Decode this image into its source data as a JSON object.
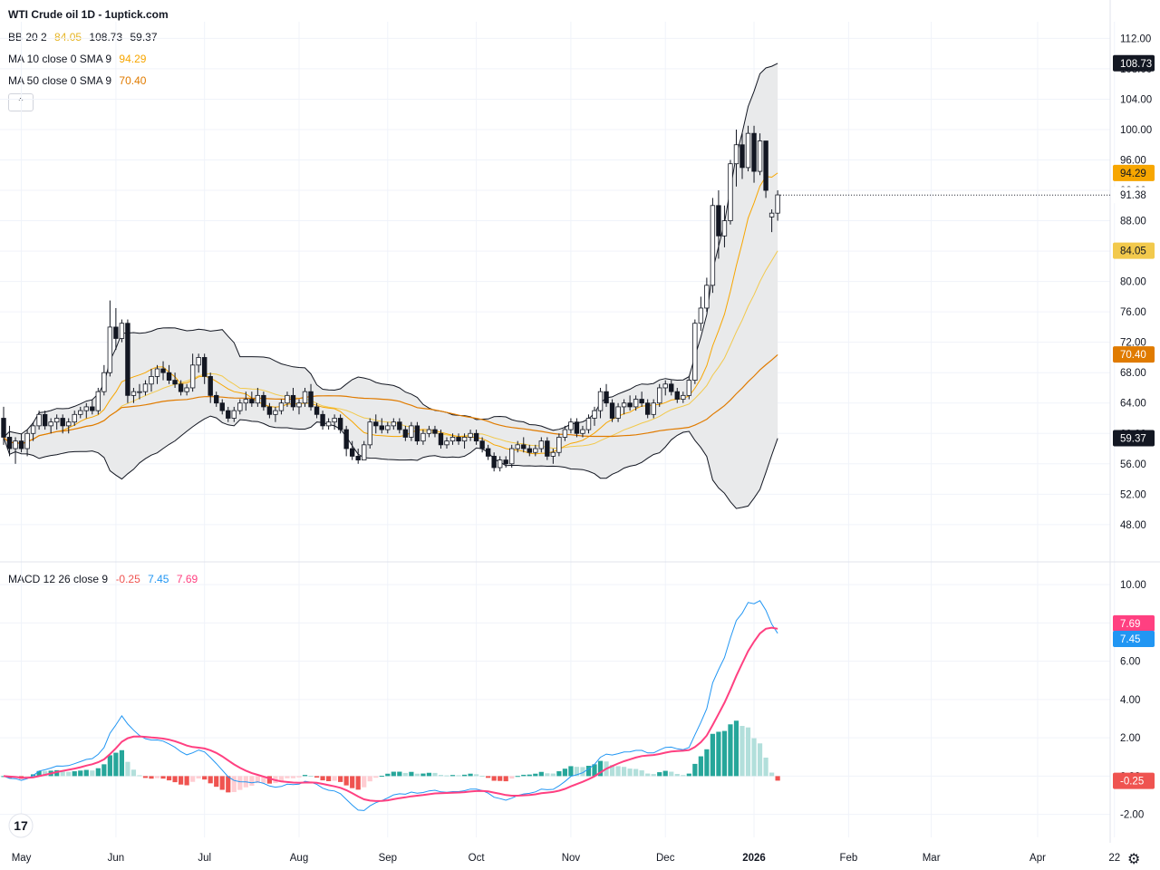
{
  "header": {
    "title": "WTI Crude oil  1D - 1uptick.com",
    "bb": {
      "label": "BB 20 2",
      "basis": "84.05",
      "upper": "108.73",
      "lower": "59.37"
    },
    "ma10": {
      "label": "MA 10 close 0 SMA 9",
      "value": "94.29"
    },
    "ma50": {
      "label": "MA 50 close 0 SMA 9",
      "value": "70.40"
    },
    "collapse_icon": "chevron-up-icon"
  },
  "macd_legend": {
    "label": "MACD 12 26 close 9",
    "hist": "-0.25",
    "macd": "7.45",
    "signal": "7.69"
  },
  "colors": {
    "up": "#ffffff",
    "down": "#131722",
    "bb_band": "#131722",
    "bb_fill": "#e9eaeb",
    "basis": "#f2c94c",
    "ma10": "#f7a600",
    "ma50": "#e07b00",
    "macd_line": "#2196f3",
    "signal_line": "#ff4081",
    "hist_pos_strong": "#26a69a",
    "hist_pos_weak": "#b2dfdb",
    "hist_neg_strong": "#ef5350",
    "hist_neg_weak": "#ffcdd2",
    "grid": "#f0f3fa"
  },
  "chart_data": [
    {
      "type": "candlestick",
      "title": "WTI Crude oil  1D - 1uptick.com",
      "ylim": [
        45.0,
        113.0
      ],
      "y_ticks": [
        "112.00",
        "108.00",
        "104.00",
        "100.00",
        "96.00",
        "92.00",
        "88.00",
        "84.00",
        "80.00",
        "76.00",
        "72.00",
        "68.00",
        "64.00",
        "60.00",
        "56.00",
        "52.00",
        "48.00"
      ],
      "x_labels": [
        "May",
        "Jun",
        "Jul",
        "Aug",
        "Sep",
        "Oct",
        "Nov",
        "Dec",
        "2026",
        "Feb",
        "Mar",
        "Apr",
        "22"
      ],
      "x_label_bold": "2026",
      "candles": [
        [
          62.0,
          63.5,
          58.5,
          59.5
        ],
        [
          59.5,
          61.0,
          57.0,
          58.0
        ],
        [
          58.0,
          59.5,
          56.0,
          59.0
        ],
        [
          59.0,
          60.0,
          57.5,
          58.0
        ],
        [
          58.0,
          60.5,
          57.0,
          60.0
        ],
        [
          60.0,
          61.5,
          59.0,
          61.0
        ],
        [
          61.0,
          63.0,
          60.5,
          62.5
        ],
        [
          62.5,
          63.0,
          60.5,
          61.0
        ],
        [
          61.0,
          62.0,
          60.0,
          61.5
        ],
        [
          61.5,
          62.5,
          60.5,
          62.0
        ],
        [
          62.0,
          62.5,
          60.0,
          61.0
        ],
        [
          61.0,
          62.0,
          60.0,
          61.5
        ],
        [
          61.5,
          63.0,
          61.0,
          62.5
        ],
        [
          62.5,
          63.5,
          62.0,
          63.0
        ],
        [
          63.0,
          64.0,
          62.0,
          63.5
        ],
        [
          63.5,
          64.5,
          62.5,
          63.0
        ],
        [
          63.0,
          66.0,
          62.5,
          65.5
        ],
        [
          65.5,
          69.0,
          65.0,
          68.0
        ],
        [
          68.0,
          77.5,
          67.5,
          74.0
        ],
        [
          74.0,
          76.5,
          71.0,
          72.5
        ],
        [
          72.5,
          75.0,
          72.0,
          74.5
        ],
        [
          74.5,
          75.0,
          64.0,
          65.0
        ],
        [
          65.0,
          66.0,
          64.0,
          65.5
        ],
        [
          65.5,
          66.5,
          64.5,
          65.5
        ],
        [
          65.5,
          67.0,
          65.0,
          66.5
        ],
        [
          66.5,
          68.5,
          65.5,
          67.5
        ],
        [
          67.5,
          69.0,
          66.5,
          68.5
        ],
        [
          68.5,
          69.5,
          67.0,
          68.0
        ],
        [
          68.0,
          69.0,
          66.5,
          67.0
        ],
        [
          67.0,
          68.0,
          66.0,
          66.5
        ],
        [
          66.5,
          67.0,
          65.0,
          65.5
        ],
        [
          65.5,
          66.5,
          65.0,
          66.0
        ],
        [
          66.0,
          70.5,
          65.5,
          69.0
        ],
        [
          69.0,
          70.5,
          68.0,
          70.0
        ],
        [
          70.0,
          70.5,
          66.5,
          67.5
        ],
        [
          67.5,
          68.0,
          64.0,
          65.0
        ],
        [
          65.0,
          65.5,
          63.5,
          64.0
        ],
        [
          64.0,
          64.5,
          62.5,
          63.0
        ],
        [
          63.0,
          63.5,
          61.5,
          62.0
        ],
        [
          62.0,
          63.5,
          61.5,
          63.0
        ],
        [
          63.0,
          64.5,
          62.5,
          64.0
        ],
        [
          64.0,
          65.5,
          63.0,
          64.5
        ],
        [
          64.5,
          65.5,
          63.5,
          64.0
        ],
        [
          64.0,
          66.0,
          63.5,
          65.0
        ],
        [
          65.0,
          65.5,
          63.0,
          63.5
        ],
        [
          63.5,
          64.0,
          62.0,
          62.5
        ],
        [
          62.5,
          63.5,
          61.5,
          63.0
        ],
        [
          63.0,
          64.5,
          62.5,
          64.0
        ],
        [
          64.0,
          65.5,
          63.5,
          65.0
        ],
        [
          65.0,
          66.0,
          63.0,
          63.5
        ],
        [
          63.5,
          64.5,
          62.5,
          64.0
        ],
        [
          64.0,
          66.0,
          63.5,
          65.5
        ],
        [
          65.5,
          66.5,
          63.0,
          63.5
        ],
        [
          63.5,
          64.0,
          62.0,
          62.5
        ],
        [
          62.5,
          63.0,
          60.5,
          61.0
        ],
        [
          61.0,
          62.0,
          60.5,
          61.5
        ],
        [
          61.5,
          62.5,
          60.5,
          62.0
        ],
        [
          62.0,
          62.5,
          60.0,
          60.5
        ],
        [
          60.5,
          61.0,
          57.0,
          58.0
        ],
        [
          58.0,
          59.0,
          56.5,
          57.0
        ],
        [
          57.0,
          58.0,
          56.0,
          56.5
        ],
        [
          56.5,
          59.0,
          56.5,
          58.5
        ],
        [
          58.5,
          62.0,
          58.0,
          61.5
        ],
        [
          61.5,
          62.5,
          60.0,
          61.0
        ],
        [
          61.0,
          62.0,
          60.0,
          60.5
        ],
        [
          60.5,
          61.5,
          60.0,
          61.0
        ],
        [
          61.0,
          62.0,
          60.5,
          61.5
        ],
        [
          61.5,
          62.0,
          60.0,
          60.5
        ],
        [
          60.5,
          61.0,
          59.0,
          59.5
        ],
        [
          59.5,
          61.5,
          59.0,
          61.0
        ],
        [
          61.0,
          61.5,
          58.5,
          59.0
        ],
        [
          59.0,
          60.5,
          58.5,
          60.0
        ],
        [
          60.0,
          61.0,
          59.5,
          60.5
        ],
        [
          60.5,
          61.0,
          59.5,
          60.0
        ],
        [
          60.0,
          60.5,
          58.0,
          58.5
        ],
        [
          58.5,
          59.5,
          58.0,
          59.0
        ],
        [
          59.0,
          60.0,
          58.5,
          59.5
        ],
        [
          59.5,
          60.0,
          58.5,
          59.0
        ],
        [
          59.0,
          60.0,
          58.0,
          59.5
        ],
        [
          59.5,
          60.5,
          59.0,
          60.0
        ],
        [
          60.0,
          60.5,
          58.5,
          59.0
        ],
        [
          59.0,
          59.5,
          57.5,
          58.0
        ],
        [
          58.0,
          58.5,
          56.5,
          57.0
        ],
        [
          57.0,
          57.5,
          55.0,
          55.5
        ],
        [
          55.5,
          57.0,
          55.0,
          56.5
        ],
        [
          56.5,
          57.0,
          55.5,
          56.0
        ],
        [
          56.0,
          58.5,
          55.5,
          58.0
        ],
        [
          58.0,
          59.0,
          57.5,
          58.5
        ],
        [
          58.5,
          59.5,
          57.5,
          58.0
        ],
        [
          58.0,
          58.5,
          57.0,
          57.5
        ],
        [
          57.5,
          58.5,
          57.0,
          58.0
        ],
        [
          58.0,
          59.5,
          57.5,
          59.0
        ],
        [
          59.0,
          59.5,
          56.5,
          57.0
        ],
        [
          57.0,
          58.0,
          56.0,
          57.5
        ],
        [
          57.5,
          60.0,
          57.0,
          59.5
        ],
        [
          59.5,
          61.0,
          59.0,
          60.5
        ],
        [
          60.5,
          62.0,
          60.0,
          61.5
        ],
        [
          61.5,
          62.0,
          59.5,
          60.0
        ],
        [
          60.0,
          61.0,
          59.5,
          60.5
        ],
        [
          60.5,
          62.5,
          60.0,
          62.0
        ],
        [
          62.0,
          63.5,
          61.0,
          63.0
        ],
        [
          63.0,
          66.0,
          62.0,
          65.5
        ],
        [
          65.5,
          66.5,
          63.5,
          64.0
        ],
        [
          64.0,
          64.5,
          61.5,
          62.0
        ],
        [
          62.0,
          64.0,
          61.5,
          63.5
        ],
        [
          63.5,
          64.5,
          62.5,
          64.0
        ],
        [
          64.0,
          65.0,
          63.0,
          63.5
        ],
        [
          63.5,
          65.0,
          63.0,
          64.5
        ],
        [
          64.5,
          65.5,
          63.5,
          64.0
        ],
        [
          64.0,
          64.5,
          62.0,
          62.5
        ],
        [
          62.5,
          64.5,
          62.0,
          64.0
        ],
        [
          64.0,
          66.5,
          63.5,
          66.0
        ],
        [
          66.0,
          67.0,
          65.0,
          66.5
        ],
        [
          66.5,
          67.0,
          65.0,
          65.5
        ],
        [
          65.5,
          66.0,
          64.0,
          64.5
        ],
        [
          64.5,
          65.5,
          64.0,
          65.0
        ],
        [
          65.0,
          67.5,
          64.5,
          67.0
        ],
        [
          67.0,
          75.0,
          66.5,
          74.5
        ],
        [
          74.5,
          78.0,
          73.5,
          76.5
        ],
        [
          76.5,
          80.5,
          76.0,
          79.5
        ],
        [
          79.5,
          91.0,
          78.5,
          90.0
        ],
        [
          90.0,
          92.0,
          83.0,
          86.0
        ],
        [
          86.0,
          90.0,
          84.5,
          88.0
        ],
        [
          88.0,
          96.0,
          87.5,
          95.5
        ],
        [
          95.5,
          100.0,
          92.5,
          98.0
        ],
        [
          98.0,
          99.5,
          93.5,
          95.0
        ],
        [
          95.0,
          100.5,
          94.5,
          99.5
        ],
        [
          99.5,
          100.5,
          93.0,
          94.5
        ],
        [
          94.5,
          99.5,
          94.0,
          98.5
        ],
        [
          98.5,
          98.5,
          91.0,
          92.0
        ],
        [
          88.5,
          89.5,
          86.5,
          89.0
        ],
        [
          89.0,
          92.0,
          88.0,
          91.4
        ]
      ],
      "bollinger": {
        "period": 20,
        "mult": 2,
        "upper_end": 108.73,
        "basis_end": 84.05,
        "lower_end": 59.37
      },
      "ma10_end": 94.29,
      "ma50_end": 70.4,
      "last_price": "91.38",
      "price_labels": [
        "108.73",
        "94.29",
        "91.38",
        "84.05",
        "70.40",
        "59.37"
      ]
    },
    {
      "type": "bar+line",
      "title": "MACD 12 26 close 9",
      "ylim": [
        -3.2,
        11.0
      ],
      "y_ticks": [
        "10.00",
        "8.00",
        "6.00",
        "4.00",
        "2.00",
        "0.00",
        "-2.00"
      ],
      "series": [
        {
          "name": "MACD",
          "values": "computed"
        },
        {
          "name": "Signal",
          "values": "computed"
        },
        {
          "name": "Histogram",
          "values": "computed"
        }
      ],
      "last_values": {
        "hist": -0.25,
        "macd": 7.45,
        "signal": 7.69
      },
      "price_labels": [
        "7.69",
        "7.45",
        "-0.25"
      ]
    }
  ]
}
